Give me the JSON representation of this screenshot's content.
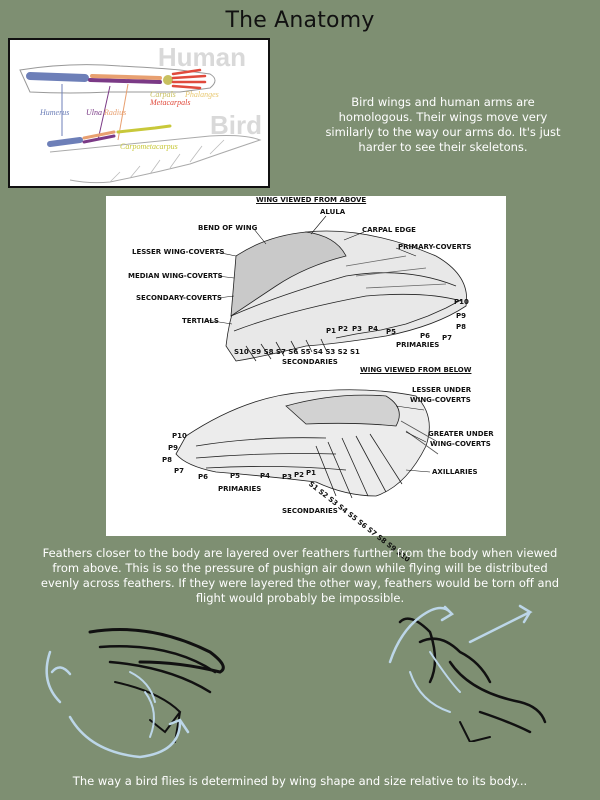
{
  "page": {
    "title": "The Anatomy",
    "intro": "Bird wings and human arms are homologous. Their wings move very similarly to the way our arms do. It's just harder to see their skeletons.",
    "caption": "Feathers closer to the body are layered over feathers further from the body when viewed from above. This is so the pressure of pushign air down while flying will be distributed evenly across feathers. If they were layered the other way, feathers would be torn off and flight would probably be impossible.",
    "footer": "The way a bird flies is determined by wing shape and size relative to its body..."
  },
  "anatomy": {
    "human_label": "Human",
    "bird_label": "Bird",
    "bones": {
      "humerus": "Humerus",
      "ulna": "Ulna",
      "radius": "Radius",
      "carpals": "Carpals",
      "metacarpals": "Metacarpals",
      "phalanges": "Phalanges",
      "carpometacarpus": "Carpometacarpus"
    },
    "colors": {
      "humerus": "#6d7fb8",
      "ulna": "#7b3a86",
      "radius": "#e8a070",
      "carpals": "#c8c060",
      "metacarpals": "#e04a3c",
      "carpometacarpus": "#c8c83a"
    }
  },
  "wing_diagram": {
    "above": {
      "heading": "WING VIEWED FROM ABOVE",
      "alula": "ALULA",
      "carpal_edge": "CARPAL EDGE",
      "bend_of_wing": "BEND OF WING",
      "primary_coverts": "PRIMARY-COVERTS",
      "lesser_coverts": "LESSER WING-COVERTS",
      "median_coverts": "MEDIAN WING-COVERTS",
      "secondary_coverts": "SECONDARY-COVERTS",
      "tertials": "TERTIALS",
      "primaries": "PRIMARIES",
      "secondaries": "SECONDARIES",
      "p_labels": [
        "P1",
        "P2",
        "P3",
        "P4",
        "P5",
        "P6",
        "P7",
        "P8",
        "P9",
        "P10"
      ],
      "s_run": "S10 S9 S8 S7 S6 S5 S4 S3 S2 S1"
    },
    "below": {
      "heading": "WING VIEWED FROM BELOW",
      "lesser_under_1": "LESSER UNDER",
      "lesser_under_2": "WING-COVERTS",
      "greater_under_1": "GREATER UNDER",
      "greater_under_2": "WING-COVERTS",
      "axillaries": "AXILLARIES",
      "primaries": "PRIMARIES",
      "secondaries": "SECONDARIES",
      "p_left": [
        "P10",
        "P9",
        "P8",
        "P7"
      ],
      "p_bottom": [
        "P6",
        "P5",
        "P4",
        "P3",
        "P2",
        "P1"
      ],
      "s_run": "S1 S2 S3 S4 S5 S6 S7 S8 S9 S10"
    }
  }
}
